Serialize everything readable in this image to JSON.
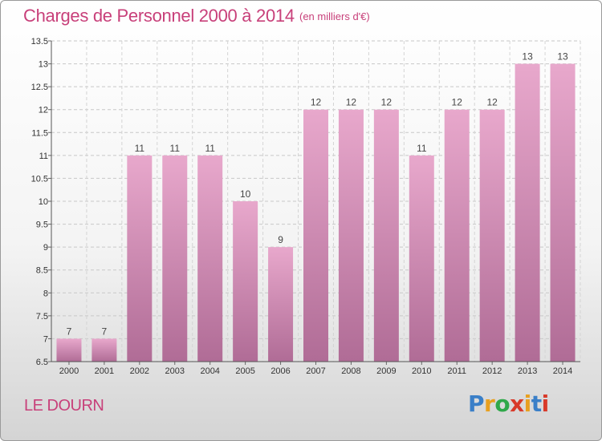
{
  "title": "Charges de Personnel 2000 à 2014",
  "subtitle": "(en milliers d'€)",
  "commune": "LE DOURN",
  "logo": {
    "letters": [
      "P",
      "r",
      "o",
      "x",
      "i",
      "t",
      "i"
    ],
    "colors": [
      "#3a7fc8",
      "#e8a020",
      "#2fa84a",
      "#d83a2a",
      "#e8a020",
      "#3a7fc8",
      "#d83a2a"
    ]
  },
  "colors": {
    "accent": "#c8407a",
    "bar_top": "#e8a8cc",
    "bar_bottom": "#b06c96"
  },
  "chart_data": {
    "type": "bar",
    "title": "Charges de Personnel 2000 à 2014",
    "subtitle": "(en milliers d'€)",
    "categories": [
      "2000",
      "2001",
      "2002",
      "2003",
      "2004",
      "2005",
      "2006",
      "2007",
      "2008",
      "2009",
      "2010",
      "2011",
      "2012",
      "2013",
      "2014"
    ],
    "values": [
      7,
      7,
      11,
      11,
      11,
      10,
      9,
      12,
      12,
      12,
      11,
      12,
      12,
      13,
      13
    ],
    "data_labels": [
      "7",
      "7",
      "11",
      "11",
      "11",
      "10",
      "9",
      "12",
      "12",
      "12",
      "11",
      "12",
      "12",
      "13",
      "13"
    ],
    "ylim": [
      6.5,
      13.5
    ],
    "yticks": [
      6.5,
      7,
      7.5,
      8,
      8.5,
      9,
      9.5,
      10,
      10.5,
      11,
      11.5,
      12,
      12.5,
      13,
      13.5
    ],
    "ytick_labels": [
      "6.5",
      "7",
      "7.5",
      "8",
      "8.5",
      "9",
      "9.5",
      "10",
      "10.5",
      "11",
      "11.5",
      "12",
      "12.5",
      "13",
      "13.5"
    ],
    "xlabel": "",
    "ylabel": "",
    "grid": true
  }
}
